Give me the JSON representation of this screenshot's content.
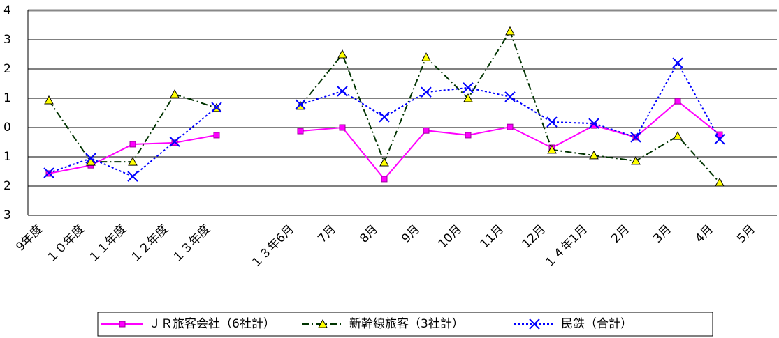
{
  "chart_data": {
    "type": "line",
    "categories": [
      "9年度",
      "１０年度",
      "１１年度",
      "１２年度",
      "１３年度",
      null,
      "１３年6月",
      "7月",
      "8月",
      "9月",
      "10月",
      "11月",
      "12月",
      "１４年1月",
      "2月",
      "3月",
      "4月",
      "5月"
    ],
    "series": [
      {
        "name": "ＪＲ旅客会社（6社計）",
        "color": "#ff00ff",
        "marker": "square",
        "dash": "solid",
        "values": [
          -1.57,
          -1.29,
          -0.57,
          -0.52,
          -0.26,
          null,
          -0.12,
          0.0,
          -1.76,
          -0.1,
          -0.26,
          0.02,
          -0.69,
          0.07,
          -0.33,
          0.9,
          -0.24,
          null
        ]
      },
      {
        "name": "新幹線旅客（3社計）",
        "color": "#003300",
        "marker": "triangle",
        "dash": "dashdot",
        "values": [
          0.93,
          -1.17,
          -1.17,
          1.14,
          0.67,
          null,
          0.74,
          2.5,
          -1.19,
          2.4,
          1.0,
          3.29,
          -0.76,
          -0.95,
          -1.14,
          -0.29,
          -1.88,
          null
        ]
      },
      {
        "name": "民鉄（合計）",
        "color": "#0000ff",
        "marker": "x",
        "dash": "dotted",
        "values": [
          -1.55,
          -1.05,
          -1.67,
          -0.48,
          0.69,
          null,
          0.79,
          1.24,
          0.36,
          1.21,
          1.36,
          1.05,
          0.19,
          0.14,
          -0.33,
          2.21,
          -0.4,
          null
        ]
      }
    ],
    "ylim": [
      -3,
      4
    ],
    "yticks": [
      {
        "value": -3,
        "label": "3"
      },
      {
        "value": -2,
        "label": "2"
      },
      {
        "value": -1,
        "label": "1"
      },
      0,
      1,
      2,
      3,
      4
    ],
    "grid": true,
    "legend": "bottom"
  }
}
